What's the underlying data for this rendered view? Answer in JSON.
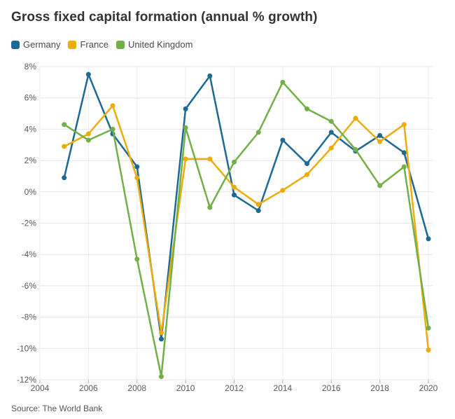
{
  "title": "Gross fixed capital formation (annual % growth)",
  "source": "Source: The World Bank",
  "colors": {
    "germany": "#1D6996",
    "france": "#EDAD08",
    "united_kingdom": "#73AF48",
    "grid_h": "#e4e4e4",
    "grid_v": "#ededed",
    "tick": "#aaaaaa",
    "axis_text": "#5a5a5a"
  },
  "legend": [
    {
      "label": "Germany",
      "color": "#1D6996"
    },
    {
      "label": "France",
      "color": "#EDAD08"
    },
    {
      "label": "United Kingdom",
      "color": "#73AF48"
    }
  ],
  "chart_data": {
    "type": "line",
    "title": "Gross fixed capital formation (annual % growth)",
    "x": [
      2005,
      2006,
      2007,
      2008,
      2009,
      2010,
      2011,
      2012,
      2013,
      2014,
      2015,
      2016,
      2017,
      2018,
      2019,
      2020
    ],
    "series": [
      {
        "name": "Germany",
        "color": "#1D6996",
        "values": [
          0.9,
          7.5,
          3.7,
          1.6,
          -9.4,
          5.3,
          7.4,
          -0.2,
          -1.2,
          3.3,
          1.8,
          3.8,
          2.6,
          3.6,
          2.5,
          -3.0
        ]
      },
      {
        "name": "France",
        "color": "#EDAD08",
        "values": [
          2.9,
          3.7,
          5.5,
          0.9,
          -9.0,
          2.1,
          2.1,
          0.3,
          -0.8,
          0.1,
          1.1,
          2.8,
          4.7,
          3.2,
          4.3,
          -10.1
        ]
      },
      {
        "name": "United Kingdom",
        "color": "#73AF48",
        "values": [
          4.3,
          3.3,
          4.0,
          -4.3,
          -11.8,
          4.1,
          -1.0,
          1.9,
          3.8,
          7.0,
          5.3,
          4.5,
          2.7,
          0.4,
          1.6,
          -8.7
        ]
      }
    ],
    "xlabel": "",
    "ylabel": "",
    "x_ticks": [
      2004,
      2006,
      2008,
      2010,
      2012,
      2014,
      2016,
      2018,
      2020
    ],
    "y_ticks": [
      8,
      6,
      4,
      2,
      0,
      -2,
      -4,
      -6,
      -8,
      -10,
      -12
    ],
    "y_tick_suffix": "%",
    "xlim": [
      2004,
      2020
    ],
    "ylim": [
      -12,
      8
    ],
    "grid": true,
    "legend_position": "top"
  }
}
